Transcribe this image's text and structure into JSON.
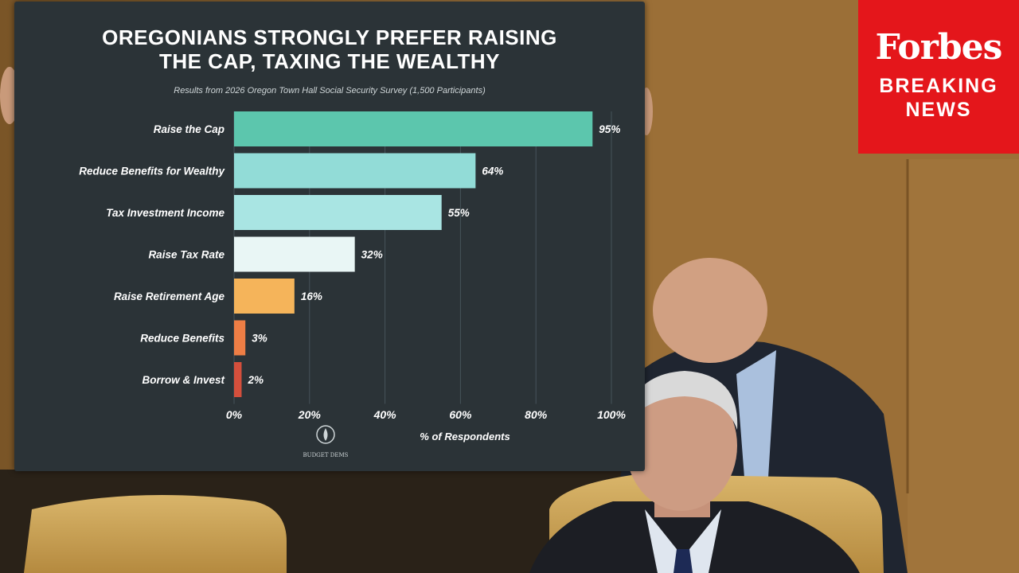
{
  "broadcast": {
    "logo": "Forbes",
    "badge_line1": "BREAKING",
    "badge_line2": "NEWS",
    "badge_color": "#e4161b"
  },
  "chart_data": {
    "type": "bar",
    "orientation": "horizontal",
    "title_line1": "OREGONIANS STRONGLY PREFER RAISING",
    "title_line2": "THE CAP, TAXING THE WEALTHY",
    "subtitle": "Results from 2026 Oregon Town Hall Social Security Survey (1,500 Participants)",
    "xlabel": "% of Respondents",
    "ylabel": "",
    "xlim": [
      0,
      100
    ],
    "xticks": [
      0,
      20,
      40,
      60,
      80,
      100
    ],
    "tick_suffix": "%",
    "grid": true,
    "categories": [
      "Raise the Cap",
      "Reduce Benefits for Wealthy",
      "Tax Investment Income",
      "Raise Tax Rate",
      "Raise Retirement Age",
      "Reduce Benefits",
      "Borrow & Invest"
    ],
    "values": [
      95,
      64,
      55,
      32,
      16,
      3,
      2
    ],
    "bar_colors": [
      "#5cc6ad",
      "#92dcd7",
      "#a9e5e3",
      "#e9f6f5",
      "#f5b45a",
      "#ee7e45",
      "#d44f3c"
    ],
    "logo_text": "BUDGET DEMS"
  }
}
